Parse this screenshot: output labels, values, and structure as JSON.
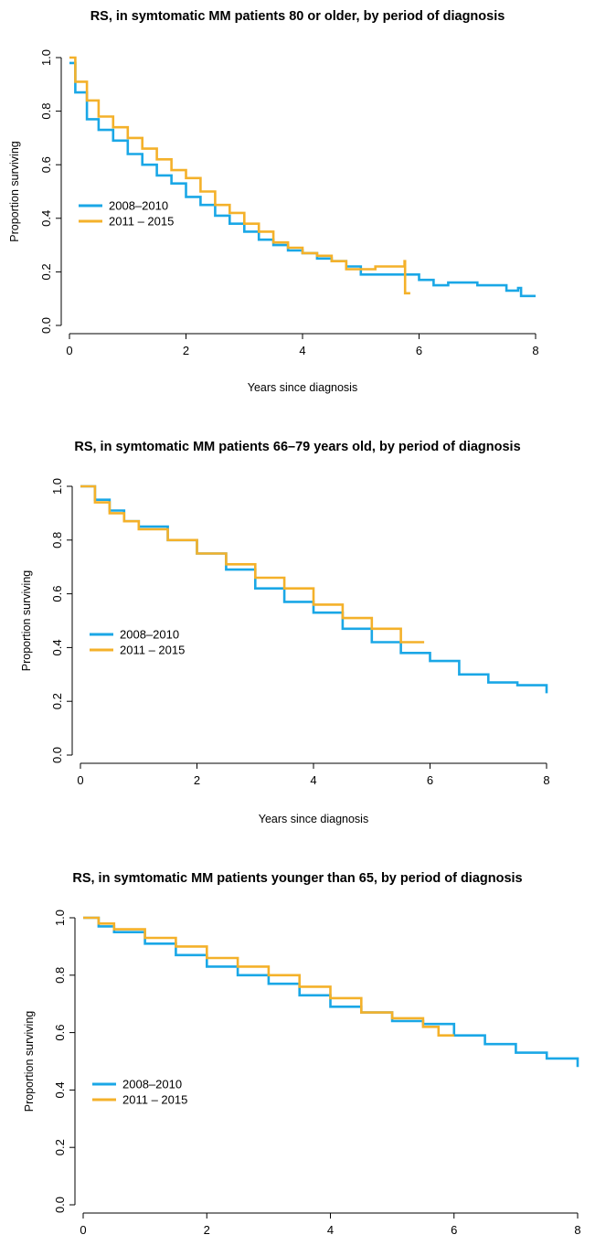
{
  "colors": {
    "blue": "#1AA7E6",
    "orange": "#F4B12A",
    "axis": "#000000"
  },
  "chart_data": [
    {
      "type": "line",
      "title": "RS, in symtomatic MM patients 80 or older, by period of diagnosis",
      "xlabel": "Years since diagnosis",
      "ylabel": "Proportion surviving",
      "xlim": [
        0,
        8
      ],
      "ylim": [
        0,
        1
      ],
      "xticks": [
        "0",
        "2",
        "4",
        "6",
        "8"
      ],
      "yticks": [
        "0.0",
        "0.2",
        "0.4",
        "0.6",
        "0.8",
        "1.0"
      ],
      "legend": {
        "position": "center-left",
        "entries": [
          "2008–2010",
          "2011 – 2015"
        ]
      },
      "grid": false,
      "series": [
        {
          "name": "2008–2010",
          "color": "blue",
          "x": [
            0,
            0.1,
            0.3,
            0.5,
            0.75,
            1.0,
            1.25,
            1.5,
            1.75,
            2.0,
            2.25,
            2.5,
            2.75,
            3.0,
            3.25,
            3.5,
            3.75,
            4.0,
            4.25,
            4.5,
            4.75,
            5.0,
            5.5,
            6.0,
            6.25,
            6.5,
            7.0,
            7.5,
            7.7,
            7.75,
            8.0
          ],
          "y": [
            0.98,
            0.87,
            0.77,
            0.73,
            0.69,
            0.64,
            0.6,
            0.56,
            0.53,
            0.48,
            0.45,
            0.41,
            0.38,
            0.35,
            0.32,
            0.3,
            0.28,
            0.27,
            0.25,
            0.24,
            0.22,
            0.19,
            0.19,
            0.17,
            0.15,
            0.16,
            0.15,
            0.13,
            0.14,
            0.11,
            0.11
          ]
        },
        {
          "name": "2011 – 2015",
          "color": "orange",
          "x": [
            0,
            0.1,
            0.3,
            0.5,
            0.75,
            1.0,
            1.25,
            1.5,
            1.75,
            2.0,
            2.25,
            2.5,
            2.75,
            3.0,
            3.25,
            3.5,
            3.75,
            4.0,
            4.25,
            4.5,
            4.75,
            5.0,
            5.25,
            5.5,
            5.75,
            5.76,
            5.85
          ],
          "y": [
            1.0,
            0.91,
            0.84,
            0.78,
            0.74,
            0.7,
            0.66,
            0.62,
            0.58,
            0.55,
            0.5,
            0.45,
            0.42,
            0.38,
            0.35,
            0.31,
            0.29,
            0.27,
            0.26,
            0.24,
            0.21,
            0.21,
            0.22,
            0.22,
            0.24,
            0.12,
            0.12
          ]
        }
      ]
    },
    {
      "type": "line",
      "title": "RS, in symtomatic MM patients 66–79 years old, by period of diagnosis",
      "xlabel": "Years since diagnosis",
      "ylabel": "Proportion surviving",
      "xlim": [
        0,
        8
      ],
      "ylim": [
        0,
        1
      ],
      "xticks": [
        "0",
        "2",
        "4",
        "6",
        "8"
      ],
      "yticks": [
        "0.0",
        "0.2",
        "0.4",
        "0.6",
        "0.8",
        "1.0"
      ],
      "legend": {
        "position": "center-left",
        "entries": [
          "2008–2010",
          "2011 – 2015"
        ]
      },
      "grid": false,
      "series": [
        {
          "name": "2008–2010",
          "color": "blue",
          "x": [
            0,
            0.25,
            0.5,
            0.75,
            1.0,
            1.5,
            2.0,
            2.5,
            3.0,
            3.5,
            4.0,
            4.5,
            5.0,
            5.5,
            6.0,
            6.5,
            7.0,
            7.5,
            8.0
          ],
          "y": [
            1.0,
            0.95,
            0.91,
            0.87,
            0.85,
            0.8,
            0.75,
            0.69,
            0.62,
            0.57,
            0.53,
            0.47,
            0.42,
            0.38,
            0.35,
            0.3,
            0.27,
            0.26,
            0.23
          ]
        },
        {
          "name": "2011 – 2015",
          "color": "orange",
          "x": [
            0,
            0.25,
            0.5,
            0.75,
            1.0,
            1.5,
            2.0,
            2.5,
            3.0,
            3.5,
            4.0,
            4.5,
            5.0,
            5.5,
            5.9
          ],
          "y": [
            1.0,
            0.94,
            0.9,
            0.87,
            0.84,
            0.8,
            0.75,
            0.71,
            0.66,
            0.62,
            0.56,
            0.51,
            0.47,
            0.42,
            0.42
          ]
        }
      ]
    },
    {
      "type": "line",
      "title": "RS, in symtomatic MM patients younger than 65, by period of diagnosis",
      "xlabel": "",
      "ylabel": "Proportion surviving",
      "xlim": [
        0,
        8
      ],
      "ylim": [
        0,
        1
      ],
      "xticks": [
        "0",
        "2",
        "4",
        "6",
        "8"
      ],
      "yticks": [
        "0.0",
        "0.2",
        "0.4",
        "0.6",
        "0.8",
        "1.0"
      ],
      "legend": {
        "position": "center-left",
        "entries": [
          "2008–2010",
          "2011 – 2015"
        ]
      },
      "grid": false,
      "series": [
        {
          "name": "2008–2010",
          "color": "blue",
          "x": [
            0,
            0.25,
            0.5,
            1.0,
            1.5,
            2.0,
            2.5,
            3.0,
            3.5,
            4.0,
            4.5,
            5.0,
            5.5,
            6.0,
            6.5,
            7.0,
            7.5,
            8.0
          ],
          "y": [
            1.0,
            0.97,
            0.95,
            0.91,
            0.87,
            0.83,
            0.8,
            0.77,
            0.73,
            0.69,
            0.67,
            0.64,
            0.63,
            0.59,
            0.56,
            0.53,
            0.51,
            0.48
          ]
        },
        {
          "name": "2011 – 2015",
          "color": "orange",
          "x": [
            0,
            0.25,
            0.5,
            1.0,
            1.5,
            2.0,
            2.5,
            3.0,
            3.5,
            4.0,
            4.5,
            5.0,
            5.5,
            5.75,
            6.0
          ],
          "y": [
            1.0,
            0.98,
            0.96,
            0.93,
            0.9,
            0.86,
            0.83,
            0.8,
            0.76,
            0.72,
            0.67,
            0.65,
            0.62,
            0.59,
            0.59
          ]
        }
      ]
    }
  ]
}
